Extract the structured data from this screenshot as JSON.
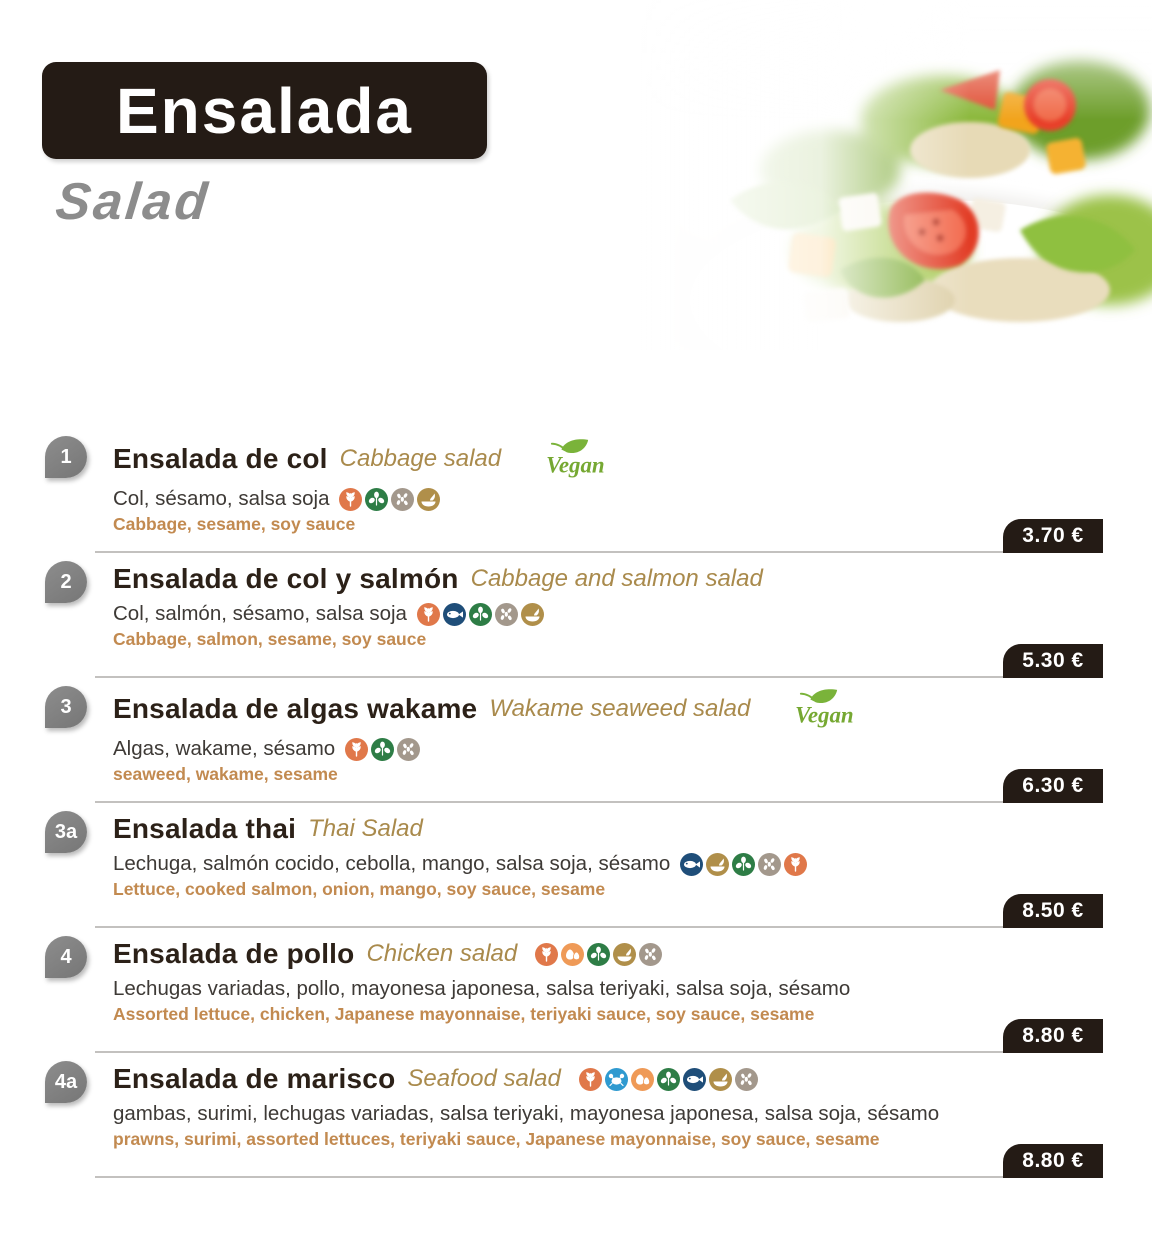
{
  "header": {
    "title_es": "Ensalada",
    "title_en": "Salad"
  },
  "vegan_label": "Vegan",
  "colors": {
    "ink": "#241b15",
    "gold": "#a98a4c",
    "tan": "#c28a50",
    "vegan_green": "#76a832",
    "badge_gray": "#818181"
  },
  "allergen_colors": {
    "gluten": "#e0784a",
    "fish": "#1f4e79",
    "crustacean": "#2f9ad0",
    "egg": "#ef9a57",
    "soy": "#2e7d46",
    "sesame": "#a3988c",
    "sulphites": "#b08f4a"
  },
  "items": [
    {
      "number": "1",
      "name_es": "Ensalada de col",
      "name_en": "Cabbage salad",
      "vegan": true,
      "allergens_at_title": false,
      "allergens": [
        "gluten",
        "soy",
        "sesame",
        "sulphites"
      ],
      "ingredients_es": "Col, sésamo, salsa soja",
      "ingredients_en": "Cabbage, sesame, soy sauce",
      "price": "3.70 €"
    },
    {
      "number": "2",
      "name_es": "Ensalada de col y salmón",
      "name_en": "Cabbage and salmon salad",
      "vegan": false,
      "allergens_at_title": false,
      "allergens": [
        "gluten",
        "fish",
        "soy",
        "sesame",
        "sulphites"
      ],
      "ingredients_es": "Col, salmón, sésamo, salsa soja",
      "ingredients_en": "Cabbage, salmon, sesame, soy sauce",
      "price": "5.30 €"
    },
    {
      "number": "3",
      "name_es": "Ensalada de algas wakame",
      "name_en": "Wakame seaweed salad",
      "vegan": true,
      "allergens_at_title": false,
      "allergens": [
        "gluten",
        "soy",
        "sesame"
      ],
      "ingredients_es": "Algas, wakame, sésamo",
      "ingredients_en": "seaweed, wakame, sesame",
      "price": "6.30 €"
    },
    {
      "number": "3a",
      "name_es": "Ensalada thai",
      "name_en": "Thai Salad",
      "vegan": false,
      "allergens_at_title": false,
      "allergens": [
        "fish",
        "sulphites",
        "soy",
        "sesame",
        "gluten"
      ],
      "ingredients_es": "Lechuga, salmón cocido, cebolla, mango, salsa soja, sésamo",
      "ingredients_en": "Lettuce, cooked salmon, onion, mango, soy sauce, sesame",
      "price": "8.50 €"
    },
    {
      "number": "4",
      "name_es": "Ensalada de pollo",
      "name_en": "Chicken salad",
      "vegan": false,
      "allergens_at_title": true,
      "allergens": [
        "gluten",
        "egg",
        "soy",
        "sulphites",
        "sesame"
      ],
      "ingredients_es": "Lechugas variadas, pollo, mayonesa japonesa, salsa teriyaki, salsa soja, sésamo",
      "ingredients_en": "Assorted lettuce, chicken, Japanese mayonnaise, teriyaki sauce, soy sauce, sesame",
      "price": "8.80 €"
    },
    {
      "number": "4a",
      "name_es": "Ensalada de marisco",
      "name_en": "Seafood salad",
      "vegan": false,
      "allergens_at_title": true,
      "allergens": [
        "gluten",
        "crustacean",
        "egg",
        "soy",
        "fish",
        "sulphites",
        "sesame"
      ],
      "ingredients_es": "gambas, surimi, lechugas variadas, salsa teriyaki, mayonesa japonesa, salsa soja, sésamo",
      "ingredients_en": "prawns, surimi, assorted lettuces, teriyaki sauce, Japanese mayonnaise, soy sauce, sesame",
      "price": "8.80 €"
    }
  ]
}
